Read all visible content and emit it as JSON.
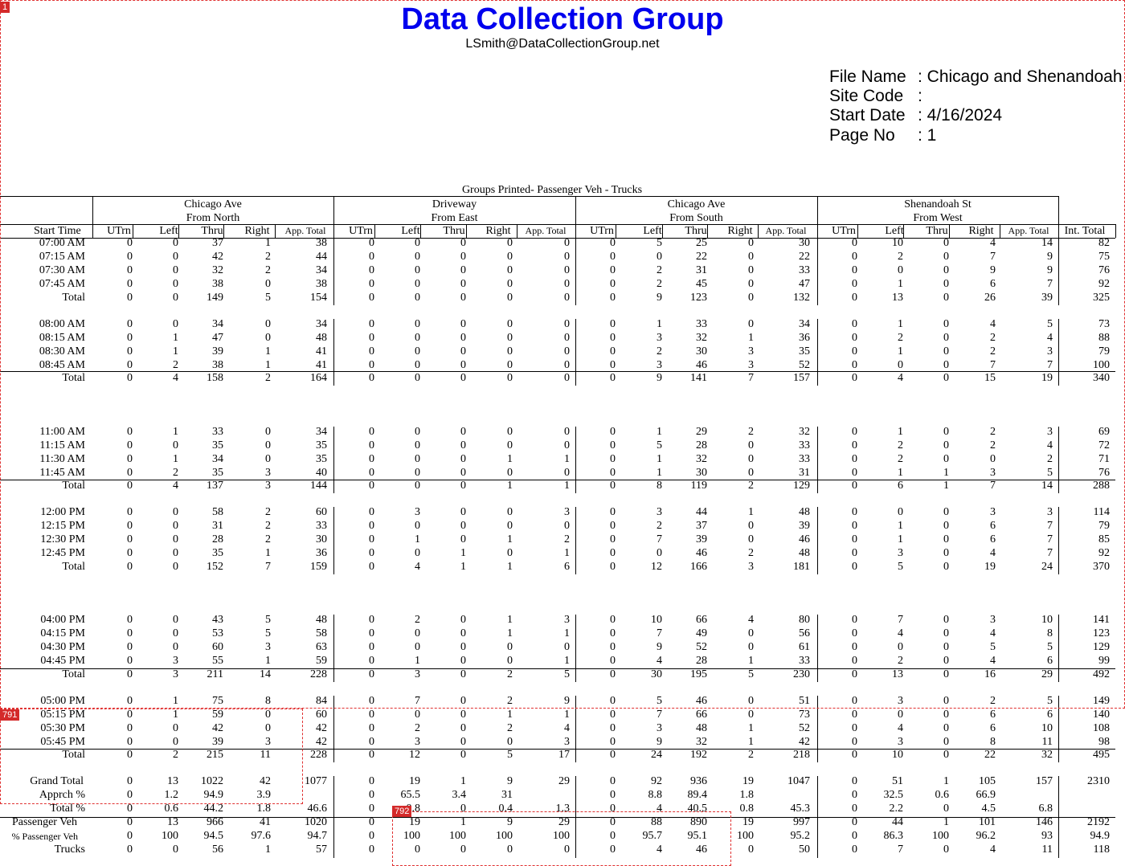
{
  "header": {
    "title": "Data Collection Group",
    "email": "LSmith@DataCollectionGroup.net",
    "info": [
      {
        "label": "File Name",
        "value": ": Chicago and Shenandoah"
      },
      {
        "label": "Site Code",
        "value": ":"
      },
      {
        "label": "Start Date",
        "value": ": 4/16/2024"
      },
      {
        "label": "Page No",
        "value": ": 1"
      }
    ]
  },
  "groups_printed": "Groups Printed- Passenger Veh - Trucks",
  "approaches": [
    {
      "street": "Chicago Ave",
      "dir": "From North"
    },
    {
      "street": "Driveway",
      "dir": "From East"
    },
    {
      "street": "Chicago Ave",
      "dir": "From South"
    },
    {
      "street": "Shenandoah St",
      "dir": "From West"
    }
  ],
  "columns": {
    "start_time": "Start Time",
    "movement": [
      "UTrn",
      "Left",
      "Thru",
      "Right",
      "App. Total"
    ],
    "int_total": "Int. Total"
  },
  "rows": [
    {
      "label": "07:00 AM",
      "v": [
        "0",
        "0",
        "37",
        "1",
        "38",
        "0",
        "0",
        "0",
        "0",
        "0",
        "0",
        "5",
        "25",
        "0",
        "30",
        "0",
        "10",
        "0",
        "4",
        "14",
        "82"
      ]
    },
    {
      "label": "07:15 AM",
      "v": [
        "0",
        "0",
        "42",
        "2",
        "44",
        "0",
        "0",
        "0",
        "0",
        "0",
        "0",
        "0",
        "22",
        "0",
        "22",
        "0",
        "2",
        "0",
        "7",
        "9",
        "75"
      ]
    },
    {
      "label": "07:30 AM",
      "v": [
        "0",
        "0",
        "32",
        "2",
        "34",
        "0",
        "0",
        "0",
        "0",
        "0",
        "0",
        "2",
        "31",
        "0",
        "33",
        "0",
        "0",
        "0",
        "9",
        "9",
        "76"
      ]
    },
    {
      "label": "07:45 AM",
      "v": [
        "0",
        "0",
        "38",
        "0",
        "38",
        "0",
        "0",
        "0",
        "0",
        "0",
        "0",
        "2",
        "45",
        "0",
        "47",
        "0",
        "1",
        "0",
        "6",
        "7",
        "92"
      ]
    },
    {
      "label": "Total",
      "v": [
        "0",
        "0",
        "149",
        "5",
        "154",
        "0",
        "0",
        "0",
        "0",
        "0",
        "0",
        "9",
        "123",
        "0",
        "132",
        "0",
        "13",
        "0",
        "26",
        "39",
        "325"
      ]
    },
    {
      "label": "08:00 AM",
      "v": [
        "0",
        "0",
        "34",
        "0",
        "34",
        "0",
        "0",
        "0",
        "0",
        "0",
        "0",
        "1",
        "33",
        "0",
        "34",
        "0",
        "1",
        "0",
        "4",
        "5",
        "73"
      ]
    },
    {
      "label": "08:15 AM",
      "v": [
        "0",
        "1",
        "47",
        "0",
        "48",
        "0",
        "0",
        "0",
        "0",
        "0",
        "0",
        "3",
        "32",
        "1",
        "36",
        "0",
        "2",
        "0",
        "2",
        "4",
        "88"
      ]
    },
    {
      "label": "08:30 AM",
      "v": [
        "0",
        "1",
        "39",
        "1",
        "41",
        "0",
        "0",
        "0",
        "0",
        "0",
        "0",
        "2",
        "30",
        "3",
        "35",
        "0",
        "1",
        "0",
        "2",
        "3",
        "79"
      ]
    },
    {
      "label": "08:45 AM",
      "v": [
        "0",
        "2",
        "38",
        "1",
        "41",
        "0",
        "0",
        "0",
        "0",
        "0",
        "0",
        "3",
        "46",
        "3",
        "52",
        "0",
        "0",
        "0",
        "7",
        "7",
        "100"
      ]
    },
    {
      "label": "Total",
      "v": [
        "0",
        "4",
        "158",
        "2",
        "164",
        "0",
        "0",
        "0",
        "0",
        "0",
        "0",
        "9",
        "141",
        "7",
        "157",
        "0",
        "4",
        "0",
        "15",
        "19",
        "340"
      ]
    },
    {
      "label": "11:00 AM",
      "v": [
        "0",
        "1",
        "33",
        "0",
        "34",
        "0",
        "0",
        "0",
        "0",
        "0",
        "0",
        "1",
        "29",
        "2",
        "32",
        "0",
        "1",
        "0",
        "2",
        "3",
        "69"
      ]
    },
    {
      "label": "11:15 AM",
      "v": [
        "0",
        "0",
        "35",
        "0",
        "35",
        "0",
        "0",
        "0",
        "0",
        "0",
        "0",
        "5",
        "28",
        "0",
        "33",
        "0",
        "2",
        "0",
        "2",
        "4",
        "72"
      ]
    },
    {
      "label": "11:30 AM",
      "v": [
        "0",
        "1",
        "34",
        "0",
        "35",
        "0",
        "0",
        "0",
        "1",
        "1",
        "0",
        "1",
        "32",
        "0",
        "33",
        "0",
        "2",
        "0",
        "0",
        "2",
        "71"
      ]
    },
    {
      "label": "11:45 AM",
      "v": [
        "0",
        "2",
        "35",
        "3",
        "40",
        "0",
        "0",
        "0",
        "0",
        "0",
        "0",
        "1",
        "30",
        "0",
        "31",
        "0",
        "1",
        "1",
        "3",
        "5",
        "76"
      ]
    },
    {
      "label": "Total",
      "v": [
        "0",
        "4",
        "137",
        "3",
        "144",
        "0",
        "0",
        "0",
        "1",
        "1",
        "0",
        "8",
        "119",
        "2",
        "129",
        "0",
        "6",
        "1",
        "7",
        "14",
        "288"
      ]
    },
    {
      "label": "12:00 PM",
      "v": [
        "0",
        "0",
        "58",
        "2",
        "60",
        "0",
        "3",
        "0",
        "0",
        "3",
        "0",
        "3",
        "44",
        "1",
        "48",
        "0",
        "0",
        "0",
        "3",
        "3",
        "114"
      ]
    },
    {
      "label": "12:15 PM",
      "v": [
        "0",
        "0",
        "31",
        "2",
        "33",
        "0",
        "0",
        "0",
        "0",
        "0",
        "0",
        "2",
        "37",
        "0",
        "39",
        "0",
        "1",
        "0",
        "6",
        "7",
        "79"
      ]
    },
    {
      "label": "12:30 PM",
      "v": [
        "0",
        "0",
        "28",
        "2",
        "30",
        "0",
        "1",
        "0",
        "1",
        "2",
        "0",
        "7",
        "39",
        "0",
        "46",
        "0",
        "1",
        "0",
        "6",
        "7",
        "85"
      ]
    },
    {
      "label": "12:45 PM",
      "v": [
        "0",
        "0",
        "35",
        "1",
        "36",
        "0",
        "0",
        "1",
        "0",
        "1",
        "0",
        "0",
        "46",
        "2",
        "48",
        "0",
        "3",
        "0",
        "4",
        "7",
        "92"
      ]
    },
    {
      "label": "Total",
      "v": [
        "0",
        "0",
        "152",
        "7",
        "159",
        "0",
        "4",
        "1",
        "1",
        "6",
        "0",
        "12",
        "166",
        "3",
        "181",
        "0",
        "5",
        "0",
        "19",
        "24",
        "370"
      ]
    },
    {
      "label": "04:00 PM",
      "v": [
        "0",
        "0",
        "43",
        "5",
        "48",
        "0",
        "2",
        "0",
        "1",
        "3",
        "0",
        "10",
        "66",
        "4",
        "80",
        "0",
        "7",
        "0",
        "3",
        "10",
        "141"
      ]
    },
    {
      "label": "04:15 PM",
      "v": [
        "0",
        "0",
        "53",
        "5",
        "58",
        "0",
        "0",
        "0",
        "1",
        "1",
        "0",
        "7",
        "49",
        "0",
        "56",
        "0",
        "4",
        "0",
        "4",
        "8",
        "123"
      ]
    },
    {
      "label": "04:30 PM",
      "v": [
        "0",
        "0",
        "60",
        "3",
        "63",
        "0",
        "0",
        "0",
        "0",
        "0",
        "0",
        "9",
        "52",
        "0",
        "61",
        "0",
        "0",
        "0",
        "5",
        "5",
        "129"
      ]
    },
    {
      "label": "04:45 PM",
      "v": [
        "0",
        "3",
        "55",
        "1",
        "59",
        "0",
        "1",
        "0",
        "0",
        "1",
        "0",
        "4",
        "28",
        "1",
        "33",
        "0",
        "2",
        "0",
        "4",
        "6",
        "99"
      ]
    },
    {
      "label": "Total",
      "v": [
        "0",
        "3",
        "211",
        "14",
        "228",
        "0",
        "3",
        "0",
        "2",
        "5",
        "0",
        "30",
        "195",
        "5",
        "230",
        "0",
        "13",
        "0",
        "16",
        "29",
        "492"
      ]
    },
    {
      "label": "05:00 PM",
      "v": [
        "0",
        "1",
        "75",
        "8",
        "84",
        "0",
        "7",
        "0",
        "2",
        "9",
        "0",
        "5",
        "46",
        "0",
        "51",
        "0",
        "3",
        "0",
        "2",
        "5",
        "149"
      ]
    },
    {
      "label": "05:15 PM",
      "v": [
        "0",
        "1",
        "59",
        "0",
        "60",
        "0",
        "0",
        "0",
        "1",
        "1",
        "0",
        "7",
        "66",
        "0",
        "73",
        "0",
        "0",
        "0",
        "6",
        "6",
        "140"
      ]
    },
    {
      "label": "05:30 PM",
      "v": [
        "0",
        "0",
        "42",
        "0",
        "42",
        "0",
        "2",
        "0",
        "2",
        "4",
        "0",
        "3",
        "48",
        "1",
        "52",
        "0",
        "4",
        "0",
        "6",
        "10",
        "108"
      ]
    },
    {
      "label": "05:45 PM",
      "v": [
        "0",
        "0",
        "39",
        "3",
        "42",
        "0",
        "3",
        "0",
        "0",
        "3",
        "0",
        "9",
        "32",
        "1",
        "42",
        "0",
        "3",
        "0",
        "8",
        "11",
        "98"
      ]
    },
    {
      "label": "Total",
      "v": [
        "0",
        "2",
        "215",
        "11",
        "228",
        "0",
        "12",
        "0",
        "5",
        "17",
        "0",
        "24",
        "192",
        "2",
        "218",
        "0",
        "10",
        "0",
        "22",
        "32",
        "495"
      ]
    },
    {
      "label": "Grand Total",
      "v": [
        "0",
        "13",
        "1022",
        "42",
        "1077",
        "0",
        "19",
        "1",
        "9",
        "29",
        "0",
        "92",
        "936",
        "19",
        "1047",
        "0",
        "51",
        "1",
        "105",
        "157",
        "2310"
      ]
    },
    {
      "label": "Apprch %",
      "v": [
        "0",
        "1.2",
        "94.9",
        "3.9",
        "",
        "0",
        "65.5",
        "3.4",
        "31",
        "",
        "0",
        "8.8",
        "89.4",
        "1.8",
        "",
        "0",
        "32.5",
        "0.6",
        "66.9",
        "",
        ""
      ]
    },
    {
      "label": "Total %",
      "v": [
        "0",
        "0.6",
        "44.2",
        "1.8",
        "46.6",
        "0",
        "0.8",
        "0",
        "0.4",
        "1.3",
        "0",
        "4",
        "40.5",
        "0.8",
        "45.3",
        "0",
        "2.2",
        "0",
        "4.5",
        "6.8",
        ""
      ]
    },
    {
      "label": "Passenger Veh",
      "v": [
        "0",
        "13",
        "966",
        "41",
        "1020",
        "0",
        "19",
        "1",
        "9",
        "29",
        "0",
        "88",
        "890",
        "19",
        "997",
        "0",
        "44",
        "1",
        "101",
        "146",
        "2192"
      ]
    },
    {
      "label": "% Passenger Veh",
      "v": [
        "0",
        "100",
        "94.5",
        "97.6",
        "94.7",
        "0",
        "100",
        "100",
        "100",
        "100",
        "0",
        "95.7",
        "95.1",
        "100",
        "95.2",
        "0",
        "86.3",
        "100",
        "96.2",
        "93",
        "94.9"
      ]
    },
    {
      "label": "Trucks",
      "v": [
        "0",
        "0",
        "56",
        "1",
        "57",
        "0",
        "0",
        "0",
        "0",
        "0",
        "0",
        "4",
        "46",
        "0",
        "50",
        "0",
        "7",
        "0",
        "4",
        "11",
        "118"
      ]
    }
  ],
  "markers": [
    "1",
    "791",
    "792"
  ]
}
